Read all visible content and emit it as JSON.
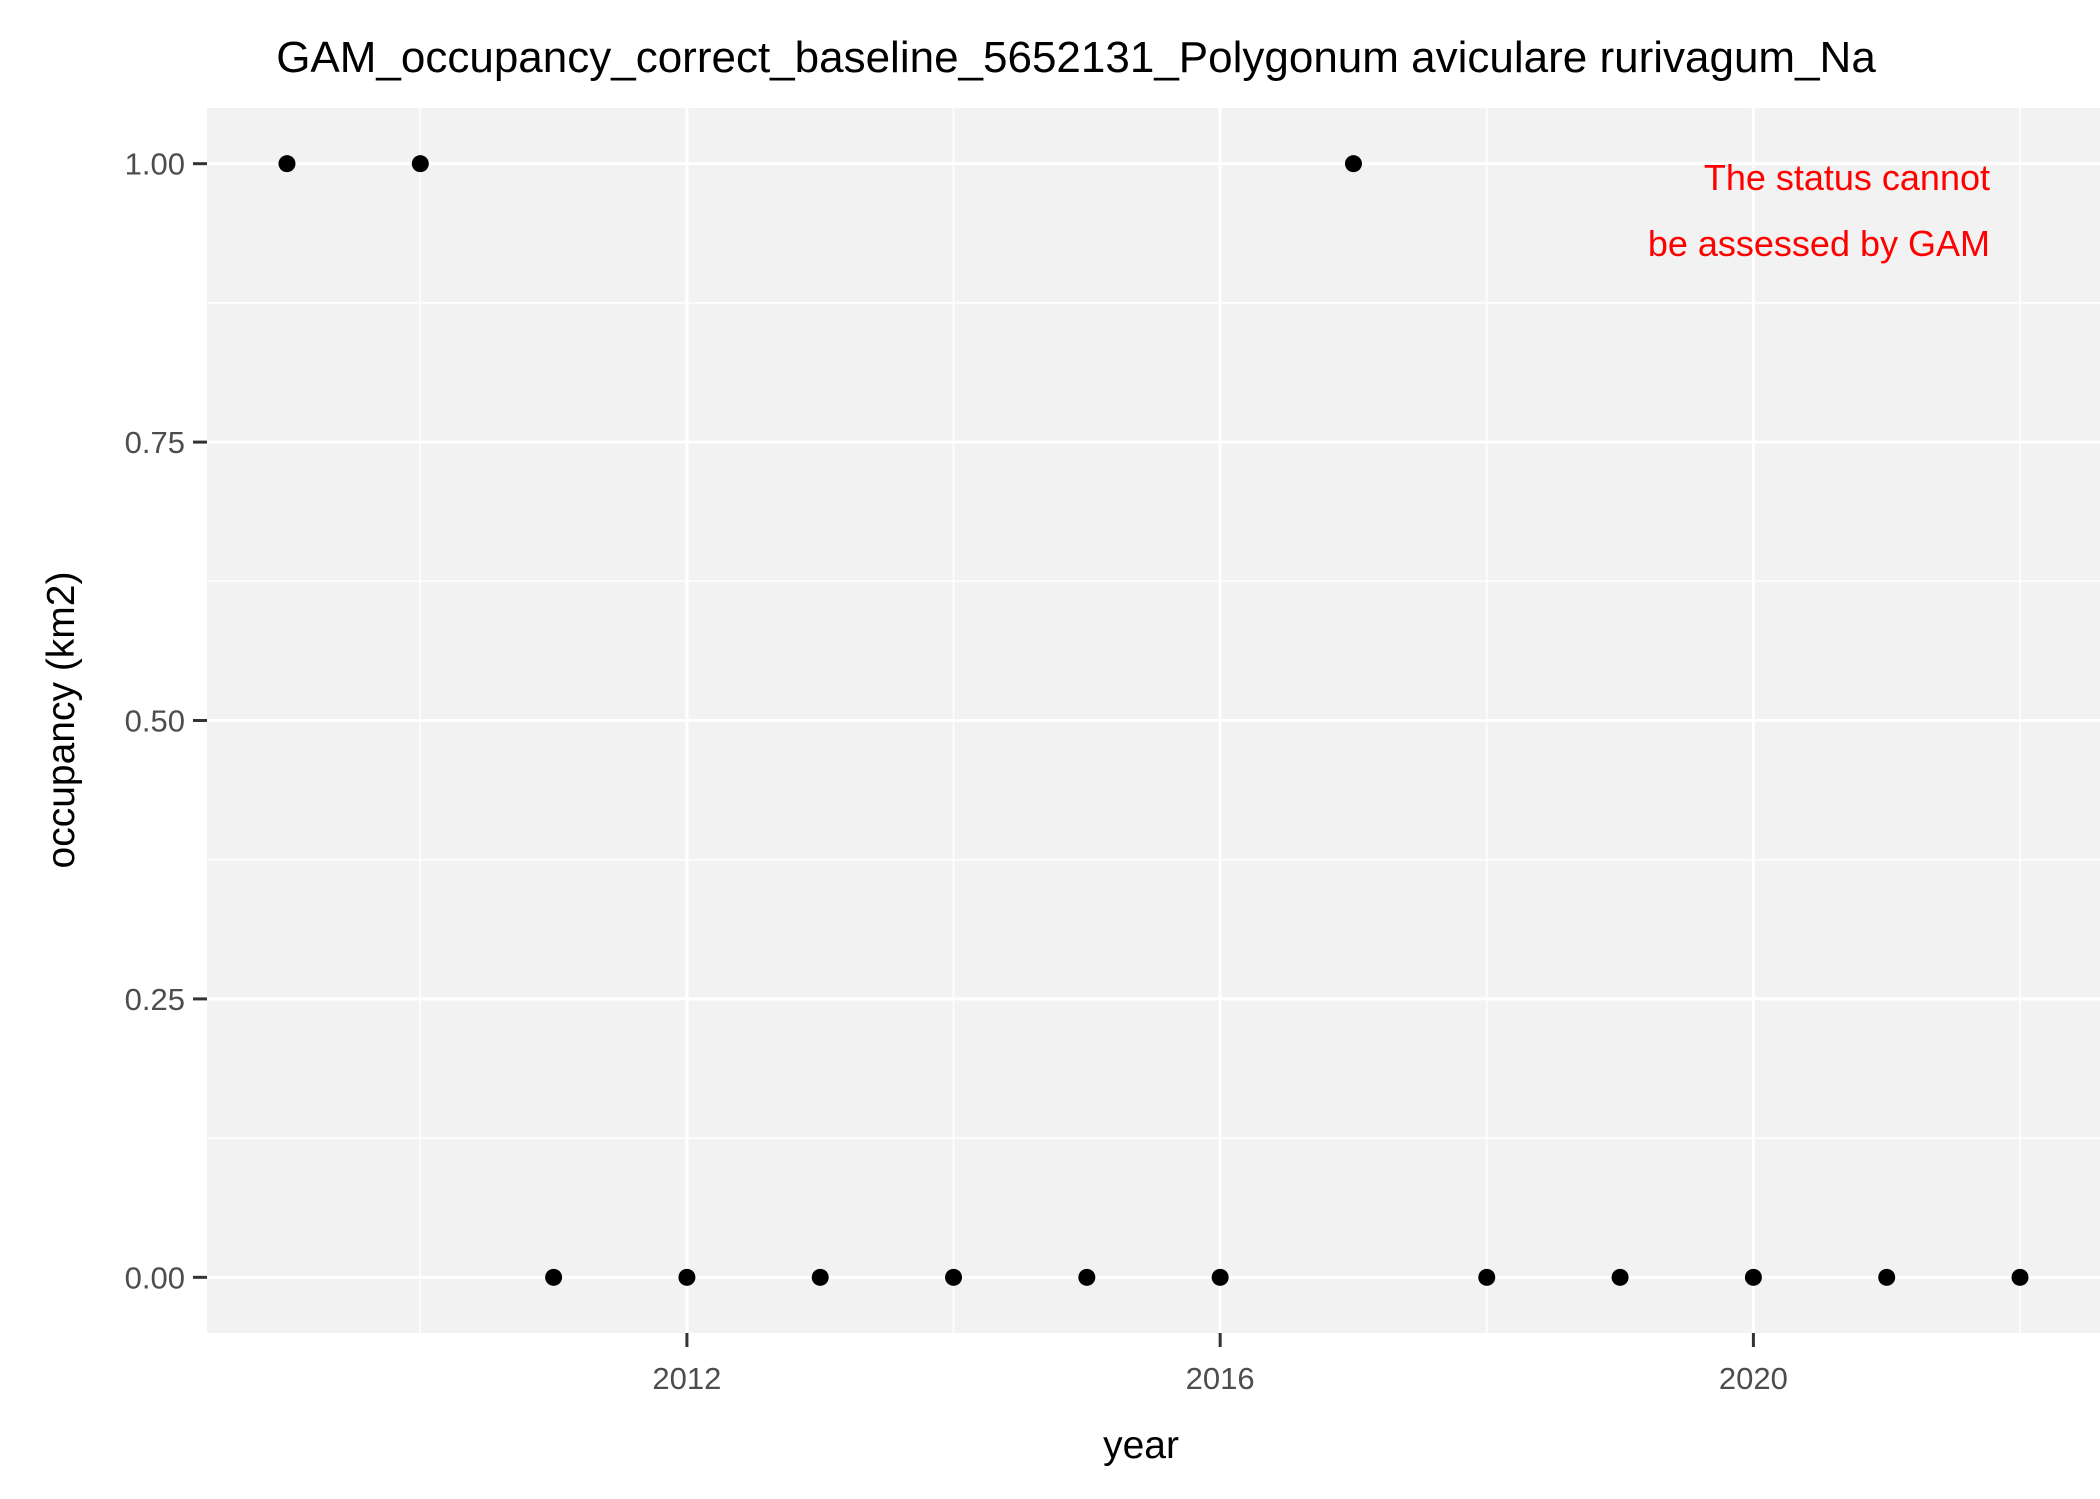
{
  "chart_data": {
    "type": "scatter",
    "title": "GAM_occupancy_correct_baseline_5652131_Polygonum aviculare rurivagum_Na",
    "xlabel": "year",
    "ylabel": "occupancy (km2)",
    "x_ticks": [
      2012,
      2016,
      2020
    ],
    "x_tick_labels": [
      "2012",
      "2016",
      "2020"
    ],
    "y_ticks": [
      0,
      0.25,
      0.5,
      0.75,
      1
    ],
    "y_tick_labels": [
      "0.00",
      "0.25",
      "0.50",
      "0.75",
      "1.00"
    ],
    "xlim": [
      2008.4,
      2022.6
    ],
    "ylim": [
      -0.05,
      1.05
    ],
    "grid": true,
    "legend": "none",
    "point_color": "#000000",
    "panel_color": "#f2f2f2",
    "grid_color": "#ffffff",
    "points": [
      {
        "x": 2009,
        "y": 1
      },
      {
        "x": 2010,
        "y": 1
      },
      {
        "x": 2011,
        "y": 0
      },
      {
        "x": 2012,
        "y": 0
      },
      {
        "x": 2013,
        "y": 0
      },
      {
        "x": 2014,
        "y": 0
      },
      {
        "x": 2015,
        "y": 0
      },
      {
        "x": 2016,
        "y": 0
      },
      {
        "x": 2017,
        "y": 1
      },
      {
        "x": 2018,
        "y": 0
      },
      {
        "x": 2019,
        "y": 0
      },
      {
        "x": 2020,
        "y": 0
      },
      {
        "x": 2021,
        "y": 0
      },
      {
        "x": 2022,
        "y": 0
      }
    ],
    "annotation": {
      "lines": [
        "The status cannot",
        "be assessed by GAM"
      ],
      "color": "#ff0000"
    }
  }
}
